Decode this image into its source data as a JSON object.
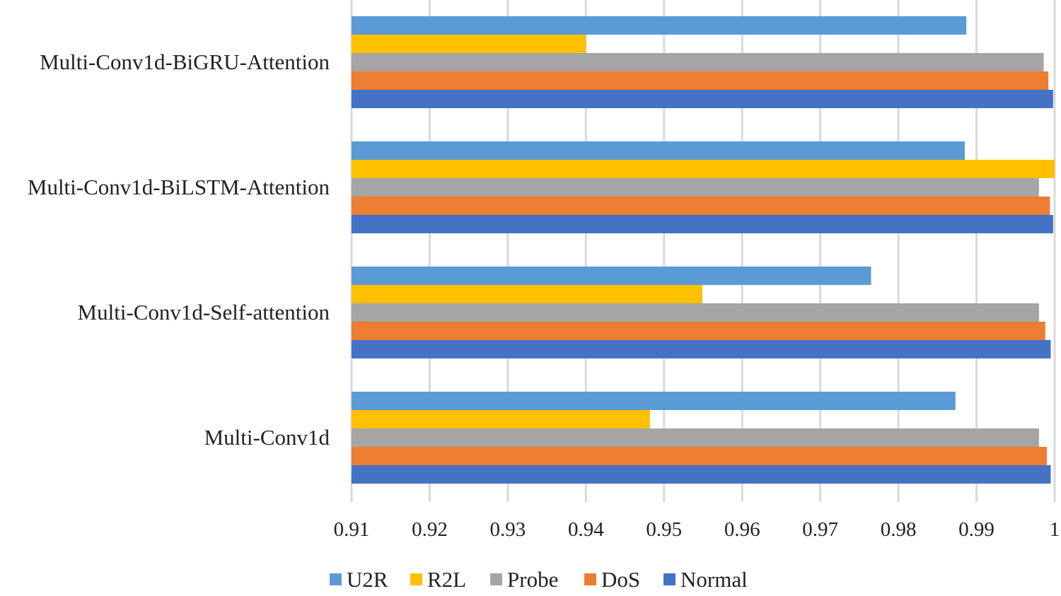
{
  "chart_data": {
    "type": "bar",
    "orientation": "horizontal",
    "categories": [
      "Multi-Conv1d-BiGRU-Attention",
      "Multi-Conv1d-BiLSTM-Attention",
      "Multi-Conv1d-Self-attention",
      "Multi-Conv1d"
    ],
    "series": [
      {
        "name": "U2R",
        "color": "#5B9BD5",
        "values": [
          0.9887,
          0.9885,
          0.9765,
          0.9873
        ]
      },
      {
        "name": "R2L",
        "color": "#FFC000",
        "values": [
          0.94,
          1.0,
          0.9549,
          0.9482
        ]
      },
      {
        "name": "Probe",
        "color": "#A5A5A5",
        "values": [
          0.9986,
          0.998,
          0.998,
          0.998
        ]
      },
      {
        "name": "DoS",
        "color": "#ED7D31",
        "values": [
          0.9992,
          0.9994,
          0.9988,
          0.999
        ]
      },
      {
        "name": "Normal",
        "color": "#4472C4",
        "values": [
          0.9998,
          0.9998,
          0.9995,
          0.9995
        ]
      }
    ],
    "xlim": [
      0.91,
      1.0
    ],
    "xticks": [
      "0.91",
      "0.92",
      "0.93",
      "0.94",
      "0.95",
      "0.96",
      "0.97",
      "0.98",
      "0.99",
      "1"
    ],
    "grid": "vertical",
    "legend": "bottom",
    "title": "",
    "xlabel": "",
    "ylabel": ""
  }
}
